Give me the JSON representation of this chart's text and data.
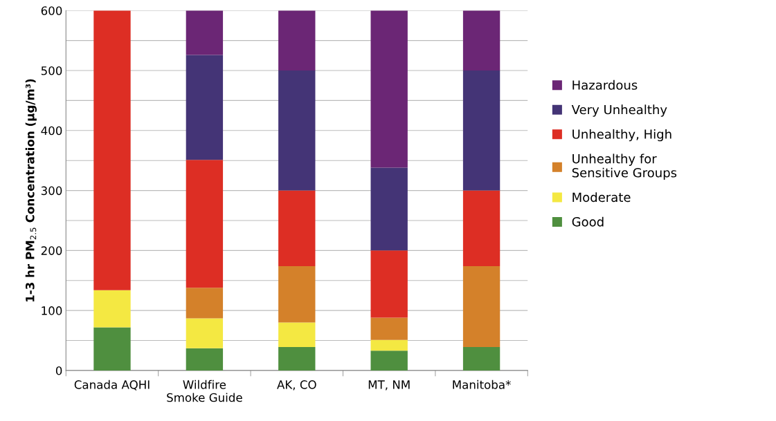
{
  "chart_data": {
    "type": "bar",
    "stacked": true,
    "ylabel": "1-3 hr PM$_{2.5}$ Concentration (μg/m³)",
    "categories": [
      "Canada AQHI",
      "Wildfire\nSmoke Guide",
      "AK, CO",
      "MT, NM",
      "Manitoba*"
    ],
    "series": [
      {
        "name": "Good",
        "color": "#4f8f3f",
        "values": [
          72,
          37,
          39,
          33,
          39
        ]
      },
      {
        "name": "Moderate",
        "color": "#f4e842",
        "values": [
          62,
          50,
          41,
          18,
          0
        ]
      },
      {
        "name": "Unhealthy for\nSensitive Groups",
        "color": "#d4812a",
        "values": [
          0,
          51,
          94,
          37,
          135
        ]
      },
      {
        "name": "Unhealthy, High",
        "color": "#dd2e24",
        "values": [
          466,
          213,
          126,
          112,
          126
        ]
      },
      {
        "name": "Very Unhealthy",
        "color": "#443476",
        "values": [
          0,
          175,
          200,
          138,
          200
        ]
      },
      {
        "name": "Hazardous",
        "color": "#6b2675",
        "values": [
          0,
          74,
          100,
          262,
          100
        ]
      }
    ],
    "ylim": [
      0,
      600
    ],
    "yticks": [
      0,
      {
        "value": 50,
        "label": null
      },
      100,
      {
        "value": 150,
        "label": null
      },
      200,
      {
        "value": 250,
        "label": null
      },
      300,
      {
        "value": 350,
        "label": null
      },
      400,
      {
        "value": 450,
        "label": null
      },
      500,
      {
        "value": 550,
        "label": null
      },
      600
    ],
    "grid": "y",
    "legend": "right"
  }
}
